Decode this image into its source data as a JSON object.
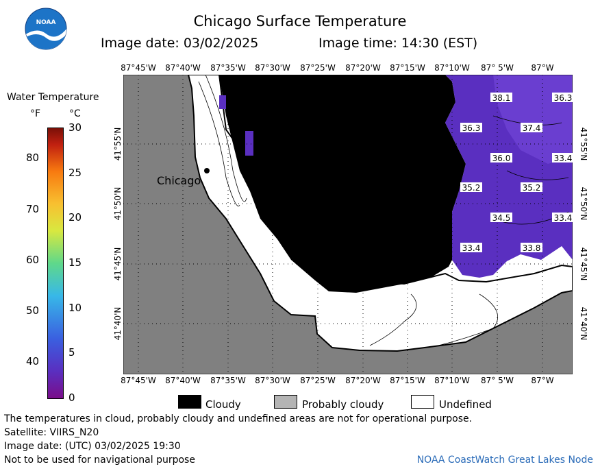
{
  "header": {
    "title": "Chicago Surface Temperature",
    "image_date": "Image date: 03/02/2025",
    "image_time": "Image time: 14:30 (EST)"
  },
  "logo": {
    "text": "NOAA"
  },
  "colorbar": {
    "title": "Water Temperature",
    "unit_f": "°F",
    "unit_c": "°C",
    "f_ticks": [
      "80",
      "70",
      "60",
      "50",
      "40"
    ],
    "c_ticks": [
      "30",
      "25",
      "20",
      "15",
      "10",
      "5",
      "0"
    ]
  },
  "map": {
    "lon_labels": [
      "87°45'W",
      "87°40'W",
      "87°35'W",
      "87°30'W",
      "87°25'W",
      "87°20'W",
      "87°15'W",
      "87°10'W",
      "87° 5'W",
      "87°W"
    ],
    "lat_labels": [
      "41°55'N",
      "41°50'N",
      "41°45'N",
      "41°40'N"
    ],
    "city_label": "Chicago",
    "temperatures": [
      "38.1",
      "36.3",
      "36.3",
      "37.4",
      "36.0",
      "33.4",
      "35.2",
      "35.2",
      "34.5",
      "33.4",
      "33.4",
      "33.8"
    ],
    "colors": {
      "land": "#808080",
      "cloud": "#000000",
      "undefined": "#ffffff",
      "water": "#5a2fc0"
    }
  },
  "legend": {
    "cloudy": "Cloudy",
    "probably_cloudy": "Probably cloudy",
    "undefined": "Undefined"
  },
  "footer": {
    "disclaimer": "The temperatures in cloud, probably cloudy and undefined areas are not for operational purpose.",
    "satellite": "Satellite: VIIRS_N20",
    "utc_date": "Image date: (UTC) 03/02/2025  19:30",
    "nav_warning": "Not to be used for navigational purpose",
    "credit": "NOAA CoastWatch Great Lakes Node"
  }
}
